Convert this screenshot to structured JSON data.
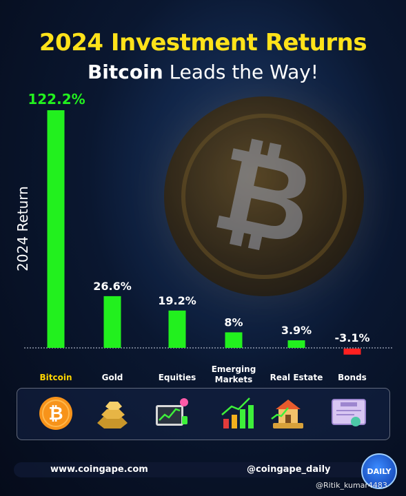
{
  "header": {
    "title": "2024 Investment Returns",
    "subtitle_bold": "Bitcoin",
    "subtitle_rest": " Leads the Way!"
  },
  "chart_data": {
    "type": "bar",
    "categories": [
      "Bitcoin",
      "Gold",
      "Equities",
      "Emerging Markets",
      "Real Estate",
      "Bonds"
    ],
    "values": [
      122.2,
      26.6,
      19.2,
      8,
      3.9,
      -3.1
    ],
    "data_labels": [
      "122.2%",
      "26.6%",
      "19.2%",
      "8%",
      "3.9%",
      "-3.1%"
    ],
    "title": "2024 Investment Returns",
    "ylabel": "2024 Return",
    "ylim": [
      -5,
      125
    ],
    "grid": false,
    "colors": {
      "positive": "#22f01e",
      "negative": "#ff2020",
      "highlight_label": "#ffd400"
    }
  },
  "icons": [
    "bitcoin-coin-icon",
    "gold-bars-icon",
    "stock-chart-icon",
    "rising-bars-icon",
    "house-growth-icon",
    "bond-certificate-icon"
  ],
  "footer": {
    "website": "www.coingape.com",
    "handle": "@coingape_daily",
    "badge": "DAILY"
  },
  "watermark": "@Ritik_kumar4483"
}
